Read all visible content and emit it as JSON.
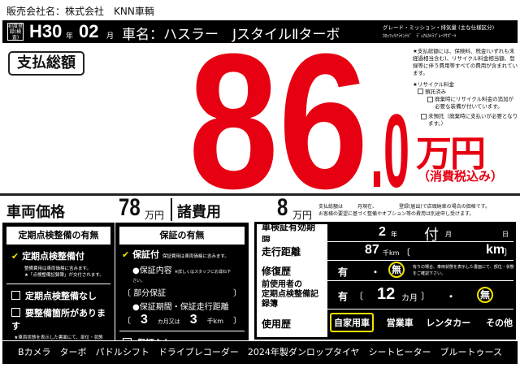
{
  "seller": "販売会社名：株式会社　KNN車輌",
  "header": {
    "first_reg_label": "初度登録(検査)",
    "era_year": "H30",
    "year_unit": "年",
    "month": "02",
    "month_unit": "月",
    "car_name": "車名：ハスラー　JスタイルⅡターボ",
    "grade_label": "グレード・ミッション・排気量 (主な仕様区分)",
    "grade_value": "ｶﾛｯﾂｪﾘｱﾗｲﾝﾅﾋﾞ　ﾃﾞｭｱﾙｶﾒﾗﾌﾞﾚｰｷｻﾎﾟｰﾄ"
  },
  "total": {
    "label": "支払総額",
    "integer": "86",
    "decimal": ".0",
    "unit": "万円",
    "tax_note": "（消費税込み）",
    "accent": "#e60012"
  },
  "notes": {
    "n1": "★支払総額には、保険料、税金(いずれも未経過相当含む)、リサイクル料金相当額、登録等に伴う費用等すべての費用が含まれています。",
    "recycle": "★リサイクル料金",
    "opt1": "預託済み",
    "opt1a": "廃棄時にリサイクル料金の追加が必要な装備が付いています。",
    "opt2": "未預託（廃棄時に支払いが必要となります。）"
  },
  "prices": {
    "vehicle_label": "車両価格",
    "vehicle_value": "78",
    "vehicle_unit": "万円",
    "fees_label": "諸費用",
    "fees_value": "8",
    "fees_unit": "万円",
    "note1": "支払総額は　　　月現在、　　　　　登録(届出)で店頭納車の場合の価格です。",
    "note2": "お客様の要望に基づく整備やオプション等の費用は別途申し受けます。"
  },
  "inspection": {
    "title": "定期点検整備の有無",
    "with": "定期点検整備付",
    "with_note1": "整備費用は車両価格に含みます。",
    "with_note2": "★「点検整備記録簿」が交付されます。",
    "without": "定期点検整備なし",
    "needs": "要整備箇所があります",
    "needs_note": "★車両状態を表示した書面にて、部位・状態をご確認下さい。",
    "checked": "with"
  },
  "warranty": {
    "title": "保証の有無",
    "with": "保証付",
    "with_note": "保証費用は車両価格に含みます。",
    "content_label": "●保証内容",
    "content_note": "※詳しくはスタッフにお尋ね下さい。",
    "content_value": "部分保証",
    "period_label": "●保証期間・保証走行距離",
    "months": "3",
    "months_unit": "カ月",
    "or": "又は",
    "km": "3",
    "km_unit": "千km",
    "without": "保証なし",
    "checked": "with"
  },
  "details": {
    "shaken_label": "車検証有効期限",
    "shaken_year": "2",
    "year_unit": "年",
    "shaken_month": "付",
    "month_unit": "月",
    "day_unit": "日",
    "mileage_label": "走行距離",
    "mileage_value": "87",
    "mileage_unit": "千km",
    "mileage_exact_unit": "km",
    "repair_label": "修復歴",
    "yes": "有",
    "dot": "・",
    "no": "無",
    "repair_selected": "無",
    "repair_note": "有りの場合、車両状態を表示した書面にて、部位・状態をご確認下さい。",
    "record_label1": "前使用者の",
    "record_label2": "定期点検整備記録簿",
    "record_months": "12",
    "record_unit": "カ月",
    "record_selected": "無",
    "usage_label": "使用歴",
    "usage_options": [
      "自家用車",
      "営業車",
      "レンタカー",
      "その他"
    ],
    "usage_selected": "自家用車"
  },
  "footer": "Bカメラ　ターボ　パドルシフト　ドライブレコーダー　2024年製ダンロップタイヤ　シートヒーター　ブルートゥース"
}
